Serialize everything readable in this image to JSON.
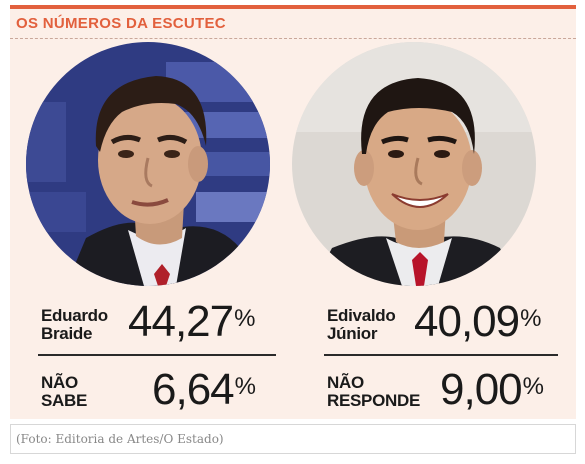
{
  "title": "OS NÚMEROS DA ESCUTEC",
  "candidates": [
    {
      "name_line1": "Eduardo",
      "name_line2": "Braide",
      "value": "44,27",
      "unit": "%"
    },
    {
      "name_line1": "Edivaldo",
      "name_line2": "Júnior",
      "value": "40,09",
      "unit": "%"
    }
  ],
  "others": [
    {
      "label_line1": "NÃO",
      "label_line2": "SABE",
      "value": "6,64",
      "unit": "%"
    },
    {
      "label_line1": "NÃO",
      "label_line2": "RESPONDE",
      "value": "9,00",
      "unit": "%"
    }
  ],
  "caption": "(Foto: Editoria de Artes/O Estado)",
  "colors": {
    "accent": "#e2603d",
    "background": "#fcefe8",
    "text": "#1a1a1a"
  }
}
